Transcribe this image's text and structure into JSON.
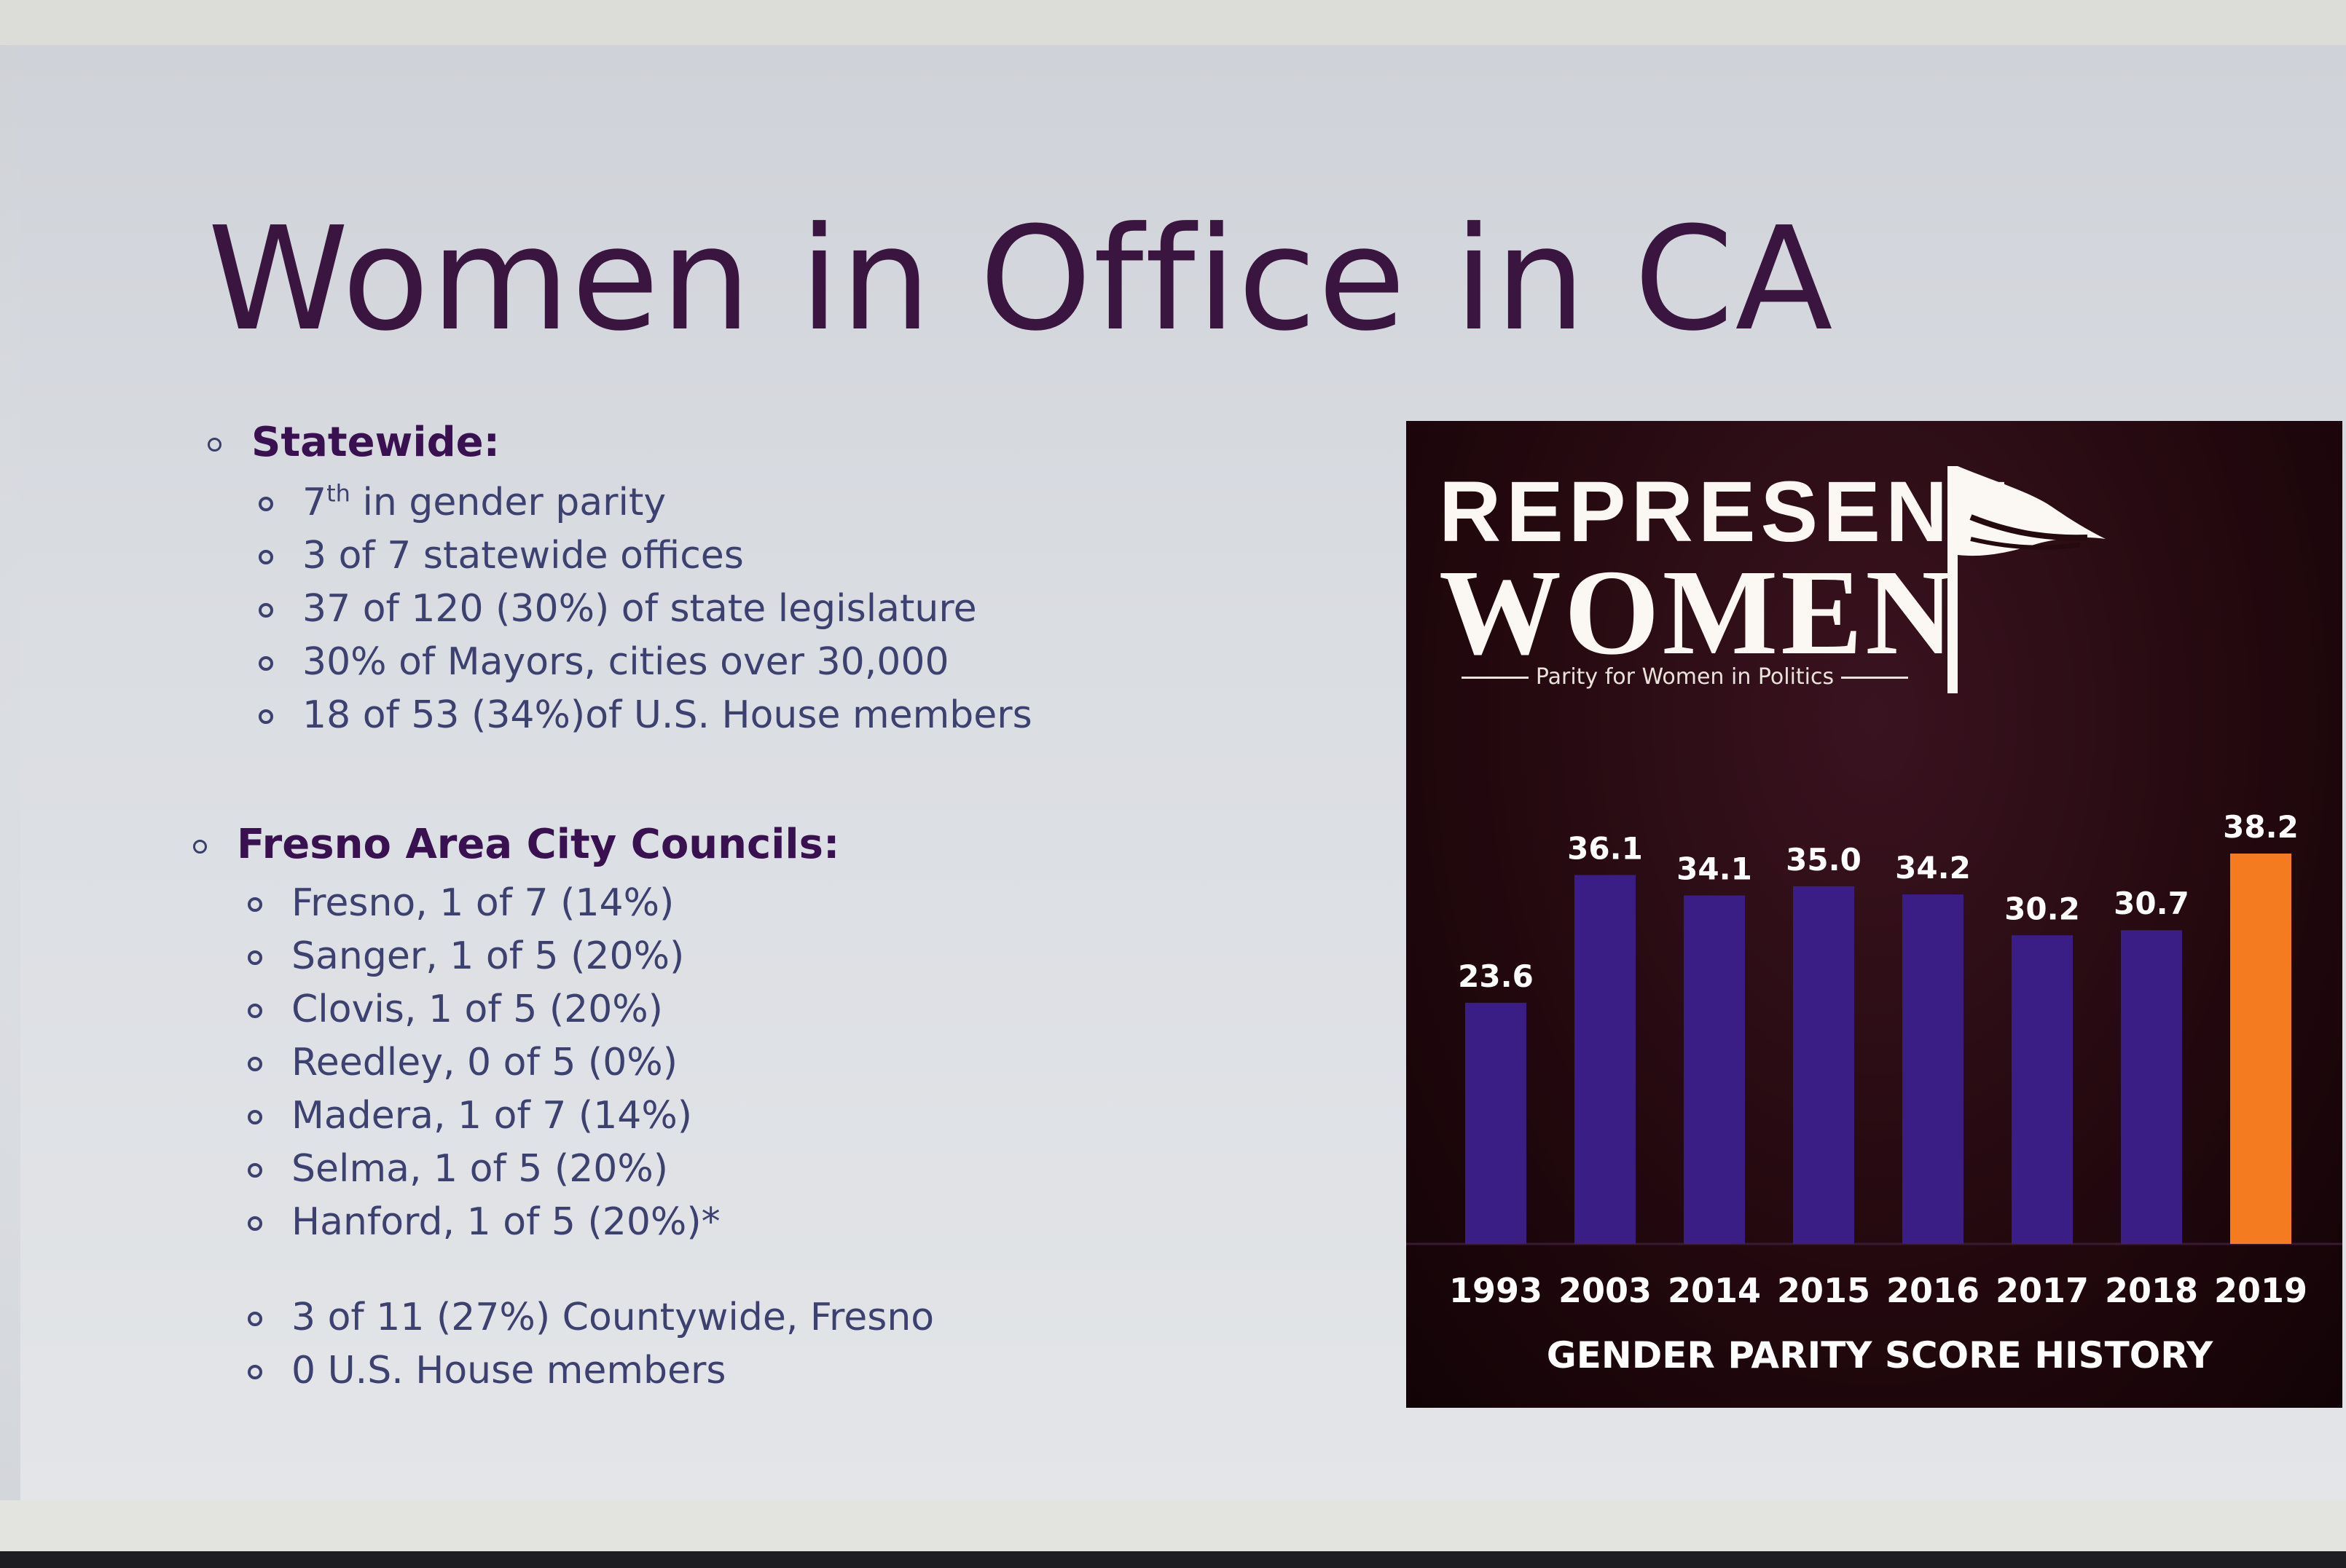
{
  "slide": {
    "title": "Women in Office in CA",
    "sections": [
      {
        "heading": "Statewide:",
        "items": [
          {
            "pre": "7",
            "sup": "th",
            "post": " in gender parity"
          },
          {
            "pre": "3 of 7  statewide offices"
          },
          {
            "pre": "37 of 120 (30%) of state legislature"
          },
          {
            "pre": "30% of Mayors, cities over 30,000"
          },
          {
            "pre": "18 of 53 (34%)of U.S. House members"
          }
        ]
      },
      {
        "heading": "Fresno Area City Councils:",
        "items": [
          {
            "pre": "Fresno, 1 of 7 (14%)"
          },
          {
            "pre": "Sanger, 1 of 5 (20%)"
          },
          {
            "pre": "Clovis, 1 of 5 (20%)"
          },
          {
            "pre": "Reedley, 0 of 5 (0%)"
          },
          {
            "pre": "Madera, 1 of 7 (14%)"
          },
          {
            "pre": "Selma, 1 of 5 (20%)"
          },
          {
            "pre": "Hanford, 1 of 5 (20%)*"
          }
        ],
        "extra_items": [
          {
            "pre": "3 of 11 (27%) Countywide, Fresno"
          },
          {
            "pre": "0 U.S. House members"
          }
        ]
      }
    ]
  },
  "logo": {
    "line1": "REPRESENT",
    "line2": "WOMEN",
    "tagline": "Parity for Women in Politics"
  },
  "chart_data": {
    "type": "bar",
    "title": "GENDER PARITY SCORE HISTORY",
    "categories": [
      "1993",
      "2003",
      "2014",
      "2015",
      "2016",
      "2017",
      "2018",
      "2019"
    ],
    "values": [
      23.6,
      36.1,
      34.1,
      35.0,
      34.2,
      30.2,
      30.7,
      38.2
    ],
    "value_labels": [
      "23.6",
      "36.1",
      "34.1",
      "35.0",
      "34.2",
      "30.2",
      "30.7",
      "38.2"
    ],
    "ylim": [
      0,
      38.2
    ],
    "grid": false,
    "colors": {
      "bar": "#3b1d86",
      "highlight": "#f47b20",
      "highlight_category": "2019"
    }
  },
  "colors": {
    "title": "#3a1540",
    "heading": "#3a1150",
    "body": "#3c4170",
    "panel_background": "#24090f"
  }
}
